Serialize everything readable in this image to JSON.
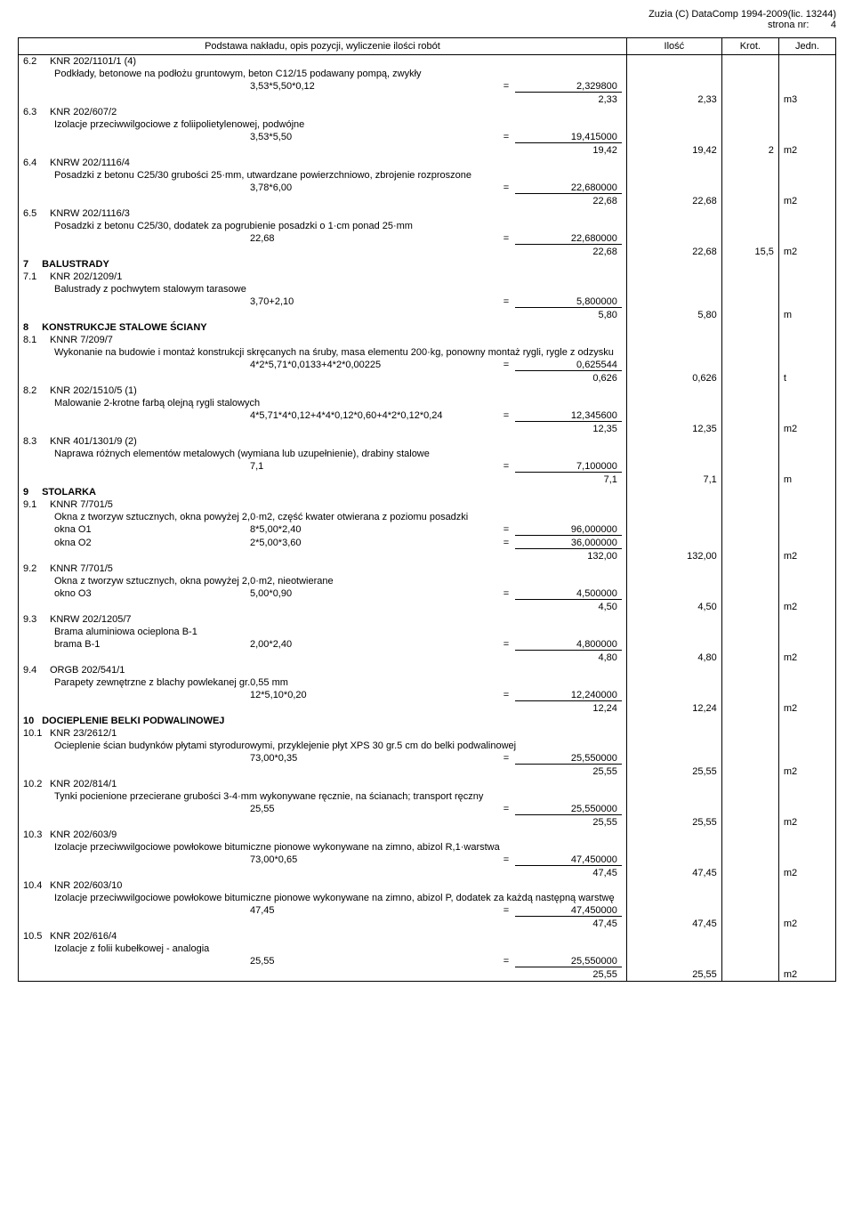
{
  "header": {
    "copyright": "Zuzia (C) DataComp 1994-2009(lic. 13244)",
    "page_label": "strona nr:",
    "page_num": "4"
  },
  "columns": {
    "desc": "Podstawa nakładu, opis pozycji, wyliczenie ilości robót",
    "ilosc": "Ilość",
    "krot": "Krot.",
    "jedn": "Jedn."
  },
  "rows": [
    {
      "type": "item",
      "num": "6.2",
      "code": "KNR 202/1101/1 (4)",
      "desc": "Podkłady, betonowe na podłożu gruntowym, beton C12/15 podawany pompą, zwykły",
      "calcs": [
        {
          "expr": "3,53*5,50*0,12",
          "val": "2,329800"
        }
      ],
      "sum": "2,33",
      "ilosc": "2,33",
      "krot": "",
      "jedn": "m3"
    },
    {
      "type": "item",
      "num": "6.3",
      "code": "KNR 202/607/2",
      "desc": "Izolacje przeciwwilgociowe z foliipolietylenowej, podwójne",
      "calcs": [
        {
          "expr": "3,53*5,50",
          "val": "19,415000"
        }
      ],
      "sum": "19,42",
      "ilosc": "19,42",
      "krot": "2",
      "jedn": "m2"
    },
    {
      "type": "item",
      "num": "6.4",
      "code": "KNRW 202/1116/4",
      "desc": "Posadzki z betonu C25/30 grubości 25·mm, utwardzane powierzchniowo, zbrojenie rozproszone",
      "calcs": [
        {
          "expr": "3,78*6,00",
          "val": "22,680000"
        }
      ],
      "sum": "22,68",
      "ilosc": "22,68",
      "krot": "",
      "jedn": "m2"
    },
    {
      "type": "item",
      "num": "6.5",
      "code": "KNRW 202/1116/3",
      "desc": "Posadzki z betonu C25/30, dodatek za pogrubienie posadzki o 1·cm ponad 25·mm",
      "calcs": [
        {
          "expr": "22,68",
          "val": "22,680000"
        }
      ],
      "sum": "22,68",
      "ilosc": "22,68",
      "krot": "15,5",
      "jedn": "m2"
    },
    {
      "type": "section",
      "num": "7",
      "title": "BALUSTRADY"
    },
    {
      "type": "item",
      "num": "7.1",
      "code": "KNR 202/1209/1",
      "desc": "Balustrady z pochwytem stalowym tarasowe",
      "calcs": [
        {
          "expr": "3,70+2,10",
          "val": "5,800000"
        }
      ],
      "sum": "5,80",
      "ilosc": "5,80",
      "krot": "",
      "jedn": "m"
    },
    {
      "type": "section",
      "num": "8",
      "title": "KONSTRUKCJE STALOWE ŚCIANY"
    },
    {
      "type": "item",
      "num": "8.1",
      "code": "KNNR 7/209/7",
      "desc": "Wykonanie na budowie i montaż konstrukcji skręcanych na śruby, masa elementu 200·kg, ponowny montaż rygli, rygle z odzysku",
      "calcs": [
        {
          "expr": "4*2*5,71*0,0133+4*2*0,00225",
          "val": "0,625544"
        }
      ],
      "sum": "0,626",
      "ilosc": "0,626",
      "krot": "",
      "jedn": "t"
    },
    {
      "type": "item",
      "num": "8.2",
      "code": "KNR 202/1510/5 (1)",
      "desc": "Malowanie 2-krotne farbą olejną rygli stalowych",
      "calcs": [
        {
          "expr": "4*5,71*4*0,12+4*4*0,12*0,60+4*2*0,12*0,24",
          "val": "12,345600"
        }
      ],
      "sum": "12,35",
      "ilosc": "12,35",
      "krot": "",
      "jedn": "m2"
    },
    {
      "type": "item",
      "num": "8.3",
      "code": "KNR 401/1301/9 (2)",
      "desc": "Naprawa różnych elementów metalowych (wymiana lub uzupełnienie), drabiny stalowe",
      "calcs": [
        {
          "expr": "7,1",
          "val": "7,100000"
        }
      ],
      "sum": "7,1",
      "ilosc": "7,1",
      "krot": "",
      "jedn": "m"
    },
    {
      "type": "section",
      "num": "9",
      "title": "STOLARKA"
    },
    {
      "type": "item",
      "num": "9.1",
      "code": "KNNR 7/701/5",
      "desc": "Okna  z tworzyw sztucznych, okna powyżej 2,0·m2, część kwater otwierana z poziomu posadzki",
      "calcs": [
        {
          "label": "okna O1",
          "expr": "8*5,00*2,40",
          "val": "96,000000"
        },
        {
          "label": "okna O2",
          "expr": "2*5,00*3,60",
          "val": "36,000000"
        }
      ],
      "sum": "132,00",
      "ilosc": "132,00",
      "krot": "",
      "jedn": "m2"
    },
    {
      "type": "item",
      "num": "9.2",
      "code": "KNNR 7/701/5",
      "desc": "Okna z tworzyw sztucznych, okna powyżej 2,0·m2, nieotwierane",
      "calcs": [
        {
          "label": "okno O3",
          "expr": "5,00*0,90",
          "val": "4,500000"
        }
      ],
      "sum": "4,50",
      "ilosc": "4,50",
      "krot": "",
      "jedn": "m2"
    },
    {
      "type": "item",
      "num": "9.3",
      "code": "KNRW 202/1205/7",
      "desc": "Brama aluminiowa ocieplona B-1",
      "calcs": [
        {
          "label": "brama B-1",
          "expr": "2,00*2,40",
          "val": "4,800000"
        }
      ],
      "sum": "4,80",
      "ilosc": "4,80",
      "krot": "",
      "jedn": "m2"
    },
    {
      "type": "item",
      "num": "9.4",
      "code": "ORGB 202/541/1",
      "desc": "Parapety zewnętrzne z blachy powlekanej gr.0,55 mm",
      "calcs": [
        {
          "expr": "12*5,10*0,20",
          "val": "12,240000"
        }
      ],
      "sum": "12,24",
      "ilosc": "12,24",
      "krot": "",
      "jedn": "m2"
    },
    {
      "type": "section",
      "num": "10",
      "title": "DOCIEPLENIE BELKI PODWALINOWEJ"
    },
    {
      "type": "item",
      "num": "10.1",
      "code": "KNR 23/2612/1",
      "desc": "Ocieplenie ścian budynków płytami styrodurowymi, przyklejenie płyt XPS 30 gr.5 cm do belki podwalinowej",
      "calcs": [
        {
          "expr": "73,00*0,35",
          "val": "25,550000"
        }
      ],
      "sum": "25,55",
      "ilosc": "25,55",
      "krot": "",
      "jedn": "m2"
    },
    {
      "type": "item",
      "num": "10.2",
      "code": "KNR 202/814/1",
      "desc": "Tynki pocienione przecierane grubości 3-4·mm wykonywane ręcznie, na ścianach; transport ręczny",
      "calcs": [
        {
          "expr": "25,55",
          "val": "25,550000"
        }
      ],
      "sum": "25,55",
      "ilosc": "25,55",
      "krot": "",
      "jedn": "m2"
    },
    {
      "type": "item",
      "num": "10.3",
      "code": "KNR 202/603/9",
      "desc": "Izolacje przeciwwilgociowe powłokowe bitumiczne pionowe wykonywane na zimno, abizol R,1·warstwa",
      "calcs": [
        {
          "expr": "73,00*0,65",
          "val": "47,450000"
        }
      ],
      "sum": "47,45",
      "ilosc": "47,45",
      "krot": "",
      "jedn": "m2"
    },
    {
      "type": "item",
      "num": "10.4",
      "code": "KNR 202/603/10",
      "desc": "Izolacje przeciwwilgociowe powłokowe bitumiczne pionowe wykonywane na zimno, abizol P, dodatek za każdą następną warstwę",
      "calcs": [
        {
          "expr": "47,45",
          "val": "47,450000"
        }
      ],
      "sum": "47,45",
      "ilosc": "47,45",
      "krot": "",
      "jedn": "m2"
    },
    {
      "type": "item",
      "num": "10.5",
      "code": "KNR 202/616/4",
      "desc": "Izolacje z folii kubełkowej - analogia",
      "calcs": [
        {
          "expr": "25,55",
          "val": "25,550000"
        }
      ],
      "sum": "25,55",
      "ilosc": "25,55",
      "krot": "",
      "jedn": "m2"
    }
  ]
}
